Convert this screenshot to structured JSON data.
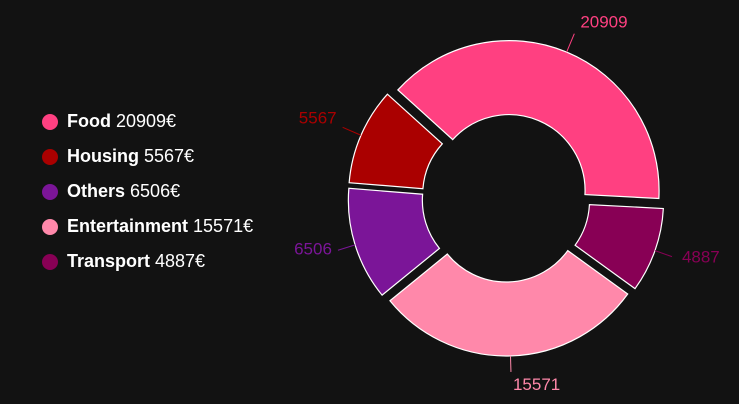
{
  "chart_data": {
    "type": "pie",
    "variant": "donut",
    "currency": "€",
    "legend_position": "left",
    "series": [
      {
        "name": "Food",
        "value": 20909,
        "color": "#ff4081"
      },
      {
        "name": "Housing",
        "value": 5567,
        "color": "#aa0000"
      },
      {
        "name": "Others",
        "value": 6506,
        "color": "#7b1598"
      },
      {
        "name": "Entertainment",
        "value": 15571,
        "color": "#ff88aa"
      },
      {
        "name": "Transport",
        "value": 4887,
        "color": "#880055"
      }
    ],
    "slice_labels": [
      "20909",
      "5567",
      "6506",
      "15571",
      "4887"
    ],
    "legend_values": [
      "20909€",
      "5567€",
      "6506€",
      "15571€",
      "4887€"
    ]
  }
}
